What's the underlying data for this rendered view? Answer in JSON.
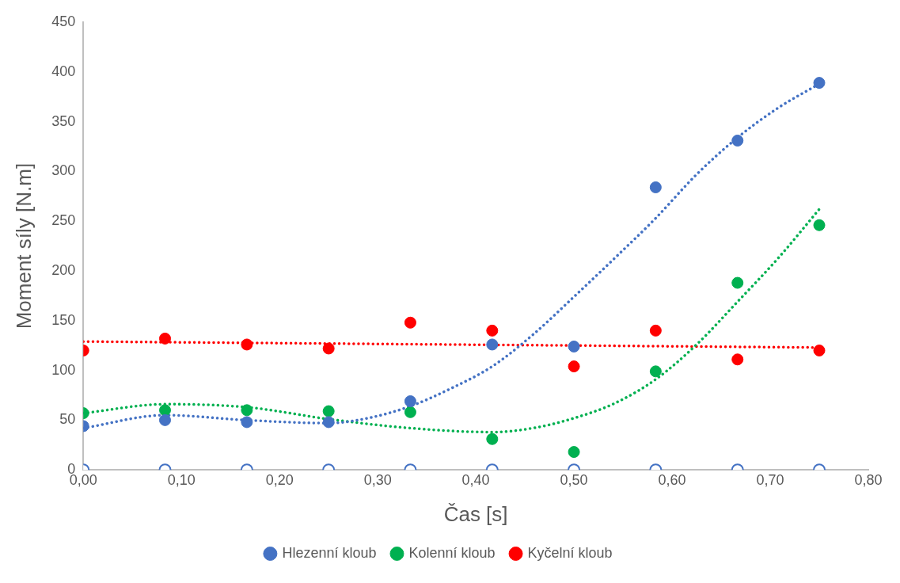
{
  "chart_data": {
    "type": "scatter",
    "xlabel": "Čas [s]",
    "ylabel": "Moment síly [N.m]",
    "xlim": [
      0,
      0.8
    ],
    "xticks": [
      {
        "value": 0,
        "label": "0,00"
      },
      {
        "value": 0.1,
        "label": "0,10"
      },
      {
        "value": 0.2,
        "label": "0,20"
      },
      {
        "value": 0.3,
        "label": "0,30"
      },
      {
        "value": 0.4,
        "label": "0,40"
      },
      {
        "value": 0.5,
        "label": "0,50"
      },
      {
        "value": 0.6,
        "label": "0,60"
      },
      {
        "value": 0.7,
        "label": "0,70"
      },
      {
        "value": 0.8,
        "label": "0,80"
      }
    ],
    "ylim": [
      0,
      450
    ],
    "yticks": [
      0,
      50,
      100,
      150,
      200,
      250,
      300,
      350,
      400,
      450
    ],
    "x": [
      0,
      0.0833,
      0.1667,
      0.25,
      0.3333,
      0.4167,
      0.5,
      0.5833,
      0.6667,
      0.75
    ],
    "grid": false,
    "legend": "bottom",
    "marker": "circle",
    "series": [
      {
        "name": "Hlezenní kloub",
        "color": "#4472c4",
        "values": [
          44,
          50,
          48,
          48,
          69,
          126,
          124,
          284,
          331,
          389
        ]
      },
      {
        "name": "Kolenní kloub",
        "color": "#00b050",
        "values": [
          57,
          60,
          60,
          59,
          58,
          31,
          18,
          99,
          188,
          246
        ]
      },
      {
        "name": "Kyčelní kloub",
        "color": "#ff0000",
        "values": [
          120,
          132,
          126,
          122,
          148,
          140,
          104,
          140,
          111,
          120
        ]
      },
      {
        "color": "#4472c4",
        "values": [
          0,
          0,
          0,
          0,
          0,
          0,
          0,
          0,
          0,
          0
        ]
      },
      {
        "type": "line",
        "color": "#4472c4",
        "marker": "none",
        "line_style": "dotted",
        "x": [
          0,
          0.0833,
          0.1667,
          0.25,
          0.29,
          0.3333,
          0.375,
          0.4167,
          0.4583,
          0.5,
          0.5417,
          0.5833,
          0.625,
          0.6667,
          0.7083,
          0.75
        ],
        "values": [
          42,
          55,
          50,
          47,
          52,
          64,
          82,
          104,
          136,
          174,
          213,
          253,
          297,
          334,
          364,
          388
        ]
      },
      {
        "type": "line",
        "color": "#00b050",
        "marker": "none",
        "line_style": "dotted",
        "x": [
          0,
          0.0833,
          0.1667,
          0.25,
          0.3333,
          0.4167,
          0.4583,
          0.5,
          0.5417,
          0.5833,
          0.625,
          0.6667,
          0.7083,
          0.75
        ],
        "values": [
          57,
          66,
          63,
          51,
          42,
          38,
          42,
          52,
          67,
          91,
          126,
          169,
          213,
          262
        ]
      },
      {
        "type": "line",
        "color": "#ff0000",
        "marker": "none",
        "line_style": "dotted",
        "x": [
          0,
          0.75
        ],
        "values": [
          129,
          123
        ]
      }
    ]
  }
}
